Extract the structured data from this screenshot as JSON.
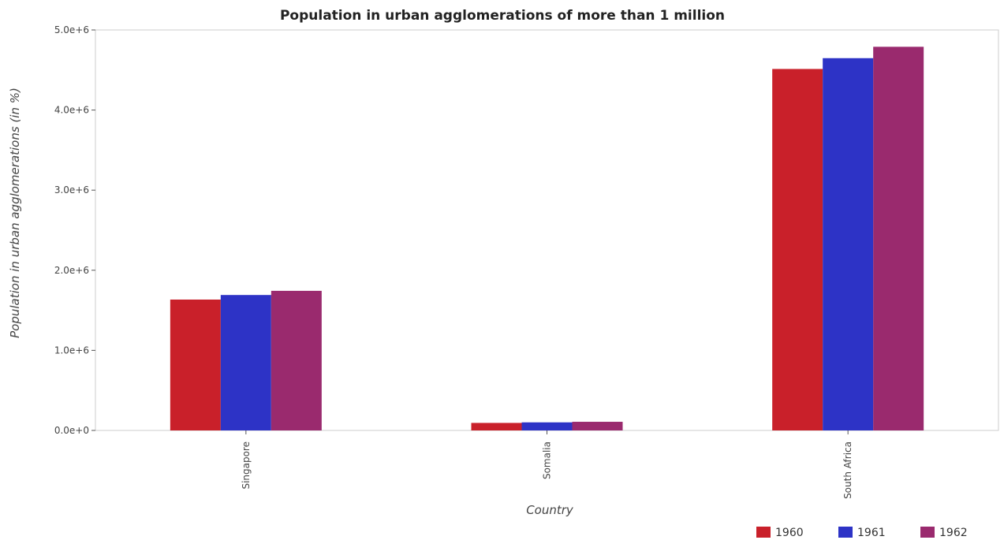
{
  "chart_data": {
    "type": "bar",
    "title": "Population in urban agglomerations of more than 1 million",
    "xlabel": "Country",
    "ylabel": "Population in urban agglomerations (in %)",
    "categories": [
      "Singapore",
      "Somalia",
      "South Africa"
    ],
    "series": [
      {
        "name": "1960",
        "color": "#c9202a",
        "values": [
          1634000,
          94000,
          4513000
        ]
      },
      {
        "name": "1961",
        "color": "#2d33c6",
        "values": [
          1691000,
          101000,
          4648000
        ]
      },
      {
        "name": "1962",
        "color": "#9a2a6e",
        "values": [
          1743000,
          108000,
          4790000
        ]
      }
    ],
    "ylim": [
      0,
      5000000
    ],
    "yticks": [
      0,
      1000000,
      2000000,
      3000000,
      4000000,
      5000000
    ],
    "ytick_labels": [
      "0.0e+0",
      "1.0e+6",
      "2.0e+6",
      "3.0e+6",
      "4.0e+6",
      "5.0e+6"
    ],
    "legend_position": "bottom-right",
    "grid": false
  }
}
